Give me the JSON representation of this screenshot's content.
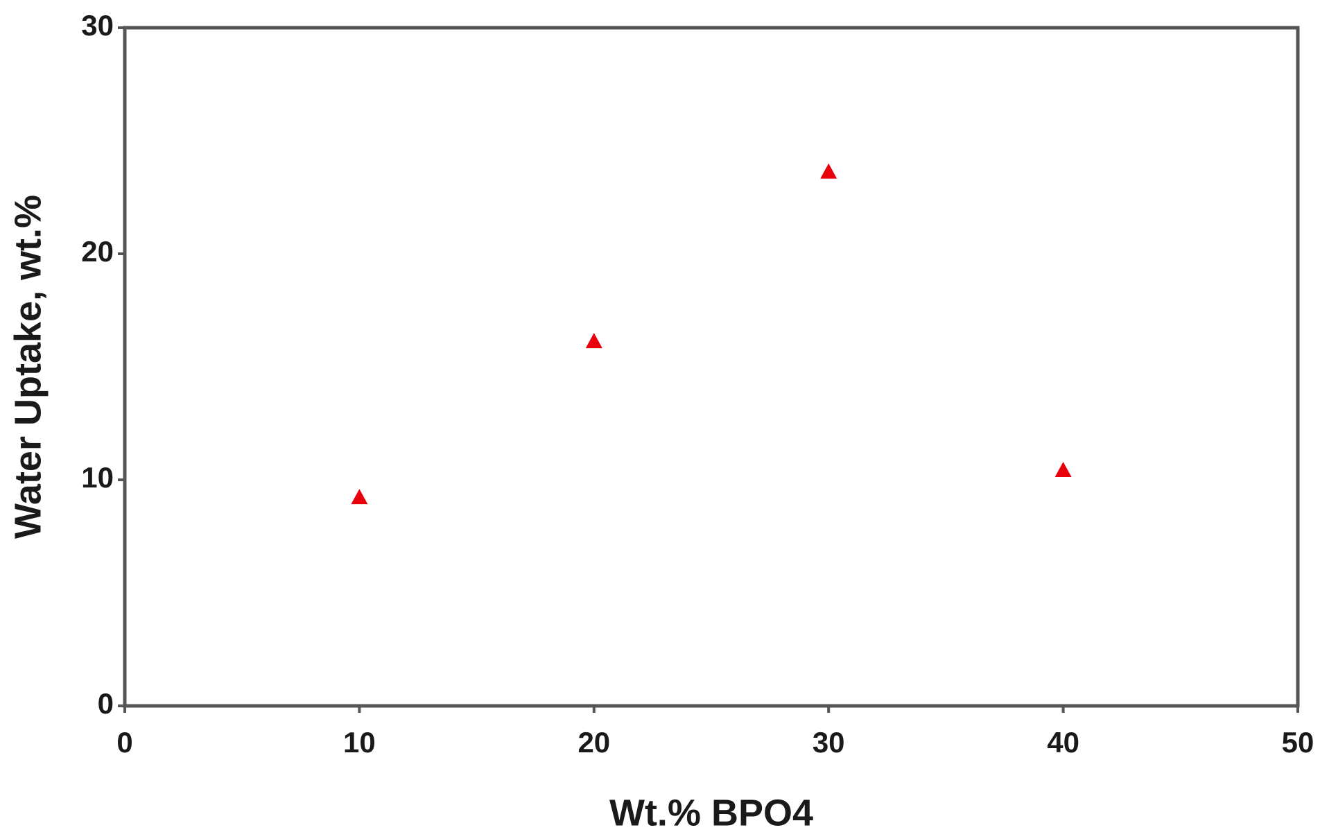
{
  "chart_data": {
    "type": "scatter",
    "x_label": "Wt.% BPO4",
    "y_label": "Water Uptake, wt.%",
    "x": [
      10,
      20,
      30,
      40
    ],
    "values": [
      9.2,
      16.1,
      23.6,
      10.4
    ],
    "color": "#e8000b",
    "marker": "triangle",
    "xlim": [
      0,
      50
    ],
    "xticks": [
      0,
      10,
      20,
      30,
      40,
      50
    ],
    "ylim": [
      0,
      30
    ],
    "yticks": [
      0,
      10,
      20,
      30
    ]
  }
}
